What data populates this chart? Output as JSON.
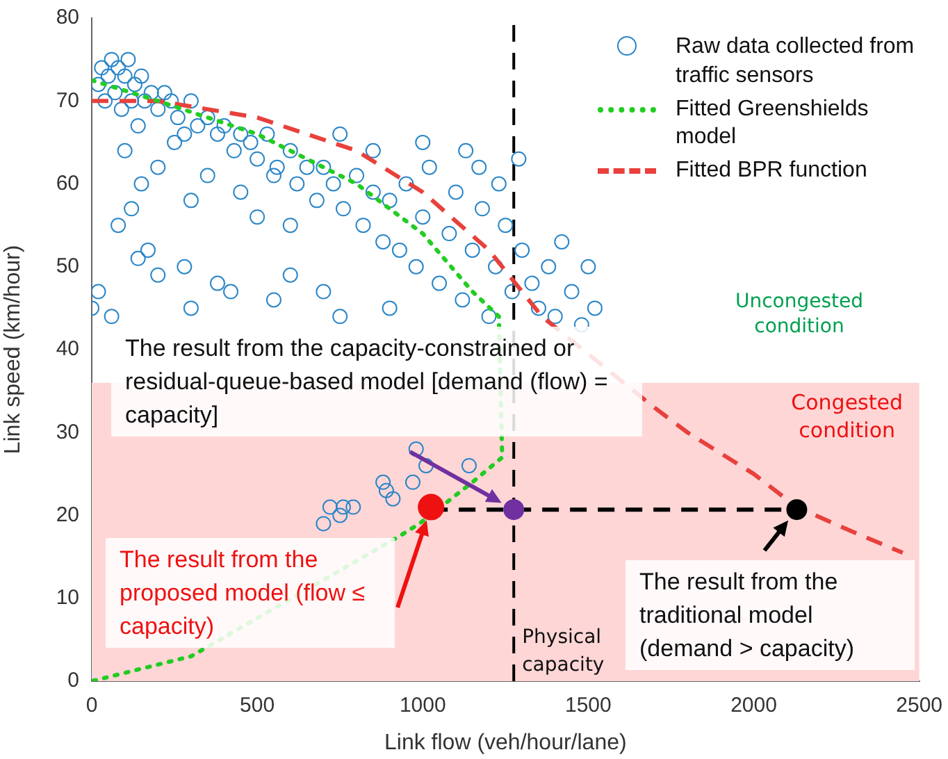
{
  "chart_data": {
    "type": "scatter",
    "xlabel": "Link flow (veh/hour/lane)",
    "ylabel": "Link speed (km/hour)",
    "xlim": [
      0,
      2500
    ],
    "xticks": [
      0,
      500,
      1000,
      1500,
      2000,
      2500
    ],
    "ylim": [
      0,
      80
    ],
    "yticks": [
      0,
      10,
      20,
      30,
      40,
      50,
      60,
      70,
      80
    ],
    "grid": false,
    "legend": "top right",
    "series": [
      {
        "name": "Raw data collected from traffic sensors",
        "color": "#2a86c8",
        "marker": "circle",
        "x": [
          20,
          30,
          40,
          50,
          60,
          70,
          80,
          90,
          100,
          110,
          120,
          130,
          140,
          150,
          160,
          180,
          200,
          220,
          240,
          260,
          280,
          300,
          320,
          350,
          380,
          400,
          430,
          450,
          480,
          500,
          530,
          560,
          600,
          620,
          650,
          680,
          700,
          730,
          760,
          800,
          820,
          850,
          880,
          900,
          930,
          950,
          980,
          1000,
          1020,
          1050,
          1080,
          1100,
          1120,
          1150,
          1180,
          1200,
          1220,
          1250,
          1270,
          1300,
          1330,
          1350,
          1380,
          1400,
          1420,
          1450,
          1480,
          1500,
          1520,
          100,
          150,
          200,
          250,
          300,
          350,
          450,
          500,
          550,
          600,
          750,
          850,
          1000,
          1130,
          1170,
          1230,
          1290,
          0,
          20,
          60,
          80,
          120,
          140,
          170,
          200,
          280,
          300,
          380,
          420,
          550,
          600,
          700,
          750,
          900,
          700,
          720,
          750,
          760,
          790,
          880,
          890,
          910,
          970,
          1010,
          1140,
          980
        ],
        "values": [
          72,
          74,
          70,
          73,
          75,
          71,
          74,
          69,
          73,
          75,
          70,
          72,
          67,
          73,
          70,
          71,
          69,
          71,
          70,
          68,
          66,
          70,
          67,
          68,
          66,
          67,
          64,
          66,
          65,
          63,
          66,
          62,
          64,
          60,
          62,
          58,
          62,
          60,
          57,
          61,
          55,
          59,
          53,
          58,
          52,
          60,
          50,
          56,
          62,
          48,
          54,
          59,
          46,
          52,
          57,
          44,
          50,
          55,
          47,
          52,
          48,
          45,
          50,
          44,
          53,
          47,
          43,
          50,
          45,
          64,
          60,
          62,
          65,
          58,
          61,
          59,
          56,
          61,
          55,
          66,
          64,
          65,
          64,
          62,
          60,
          63,
          45,
          47,
          44,
          55,
          57,
          51,
          52,
          49,
          50,
          45,
          48,
          47,
          46,
          49,
          47,
          44,
          45,
          19,
          21,
          20,
          21,
          21,
          24,
          23,
          22,
          24,
          26,
          26,
          28
        ]
      },
      {
        "type": "line",
        "name": "Fitted Greenshields model",
        "color": "#22cc22",
        "line_style": "dotted",
        "x": [
          0,
          200,
          500,
          800,
          1000,
          1150,
          1230,
          1240,
          1150,
          990,
          930,
          300,
          0
        ],
        "values": [
          72.5,
          70,
          66,
          60,
          54,
          47,
          44,
          27,
          24,
          19,
          17.5,
          3,
          0
        ]
      },
      {
        "type": "line",
        "name": "Fitted BPR function",
        "color": "#e8413c",
        "line_style": "dashed",
        "x": [
          0,
          200,
          500,
          800,
          1000,
          1200,
          1300,
          1360,
          1700,
          1800,
          2000,
          2130,
          2300,
          2450
        ],
        "values": [
          70,
          70,
          68,
          64,
          59,
          52,
          47,
          44,
          33,
          30,
          25,
          21,
          18,
          15.5
        ]
      },
      {
        "type": "line",
        "color": "#000000",
        "line_style": "dashed",
        "x": [
          1025,
          2130
        ],
        "values": [
          20.7,
          20.7
        ]
      },
      {
        "type": "scatter",
        "color": "#ee1111",
        "marker": "circle",
        "x": [
          1025
        ],
        "values": [
          21
        ]
      },
      {
        "type": "scatter",
        "color": "#7030a0",
        "marker": "circle",
        "x": [
          1275
        ],
        "values": [
          20.7
        ]
      },
      {
        "type": "scatter",
        "color": "#000000",
        "marker": "circle",
        "x": [
          2130
        ],
        "values": [
          20.7
        ]
      }
    ],
    "bands": [
      {
        "axis": "y",
        "from": 0,
        "to": 36,
        "label": "Congested condition",
        "color": "#ffd6d6"
      }
    ],
    "ref_lines": [
      {
        "axis": "x",
        "value": 1275,
        "label": "Physical capacity",
        "color": "#000000",
        "line_style": "dashed"
      }
    ],
    "annotations": [
      "The result from the capacity-constrained or residual-queue-based model [demand (flow) = capacity]",
      "The result from the proposed model (flow ≤ capacity)",
      {
        "text": "The result from the traditional model (demand > capacity)",
        "x": 2130,
        "y": 20.7
      },
      "Uncongested condition"
    ]
  }
}
